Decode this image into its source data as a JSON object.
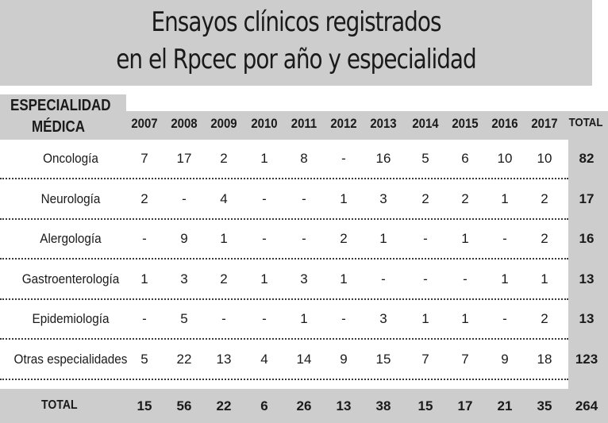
{
  "title": {
    "line1": "Ensayos clínicos registrados",
    "line2": "en el Rpcec por año y especialidad"
  },
  "header": {
    "spec_line1": "ESPECIALIDAD",
    "spec_line2": "MÉDICA",
    "years": [
      "2007",
      "2008",
      "2009",
      "2010",
      "2011",
      "2012",
      "2013",
      "2014",
      "2015",
      "2016",
      "2017"
    ],
    "total": "TOTAL"
  },
  "rows": [
    {
      "name": "Oncología",
      "values": [
        "7",
        "17",
        "2",
        "1",
        "8",
        "-",
        "16",
        "5",
        "6",
        "10",
        "10"
      ],
      "total": "82"
    },
    {
      "name": "Neurología",
      "values": [
        "2",
        "-",
        "4",
        "-",
        "-",
        "1",
        "3",
        "2",
        "2",
        "1",
        "2"
      ],
      "total": "17"
    },
    {
      "name": "Alergología",
      "values": [
        "-",
        "9",
        "1",
        "-",
        "-",
        "2",
        "1",
        "-",
        "1",
        "-",
        "2"
      ],
      "total": "16"
    },
    {
      "name": "Gastroenterología",
      "values": [
        "1",
        "3",
        "2",
        "1",
        "3",
        "1",
        "-",
        "-",
        "-",
        "1",
        "1"
      ],
      "total": "13"
    },
    {
      "name": "Epidemiología",
      "values": [
        "-",
        "5",
        "-",
        "-",
        "1",
        "-",
        "3",
        "1",
        "1",
        "-",
        "2"
      ],
      "total": "13"
    },
    {
      "name": "Otras especialidades",
      "values": [
        "5",
        "22",
        "13",
        "4",
        "14",
        "9",
        "15",
        "7",
        "7",
        "9",
        "18"
      ],
      "total": "123"
    }
  ],
  "totals": {
    "label": "TOTAL",
    "values": [
      "15",
      "56",
      "22",
      "6",
      "26",
      "13",
      "38",
      "15",
      "17",
      "21",
      "35"
    ],
    "total": "264"
  }
}
